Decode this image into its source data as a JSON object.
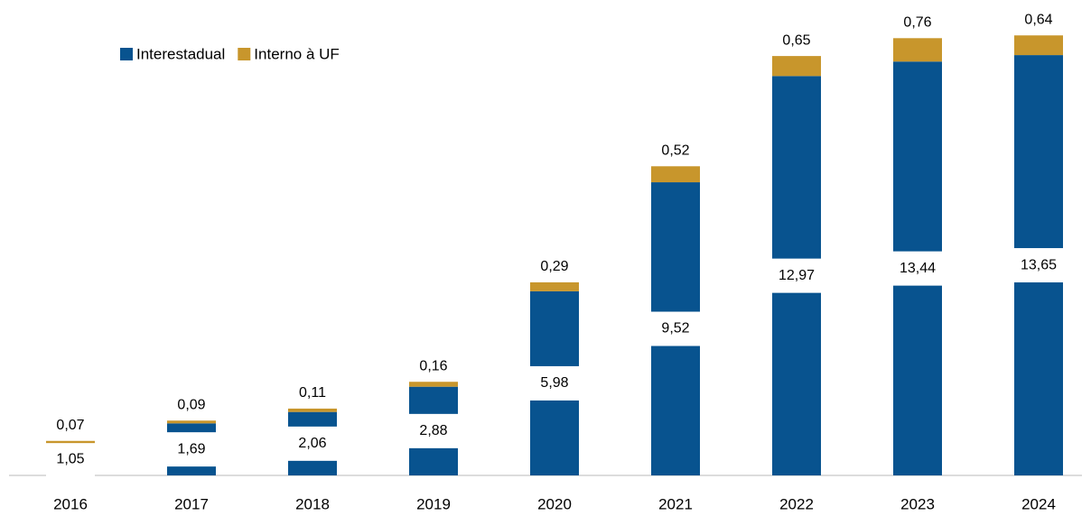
{
  "chart_data": {
    "type": "stacked_bar",
    "categories": [
      "2016",
      "2017",
      "2018",
      "2019",
      "2020",
      "2021",
      "2022",
      "2023",
      "2024"
    ],
    "series": [
      {
        "name": "Interestadual",
        "color": "#08538f",
        "values": [
          1.05,
          1.69,
          2.06,
          2.88,
          5.98,
          9.52,
          12.97,
          13.44,
          13.65
        ],
        "value_labels": [
          "1,05",
          "1,69",
          "2,06",
          "2,88",
          "5,98",
          "9,52",
          "12,97",
          "13,44",
          "13,65"
        ]
      },
      {
        "name": "Interno à UF",
        "color": "#c8962c",
        "values": [
          0.07,
          0.09,
          0.11,
          0.16,
          0.29,
          0.52,
          0.65,
          0.76,
          0.64
        ],
        "value_labels": [
          "0,07",
          "0,09",
          "0,11",
          "0,16",
          "0,29",
          "0,52",
          "0,65",
          "0,76",
          "0,64"
        ]
      }
    ],
    "ylim": [
      0,
      15
    ],
    "legend": "top-left"
  }
}
